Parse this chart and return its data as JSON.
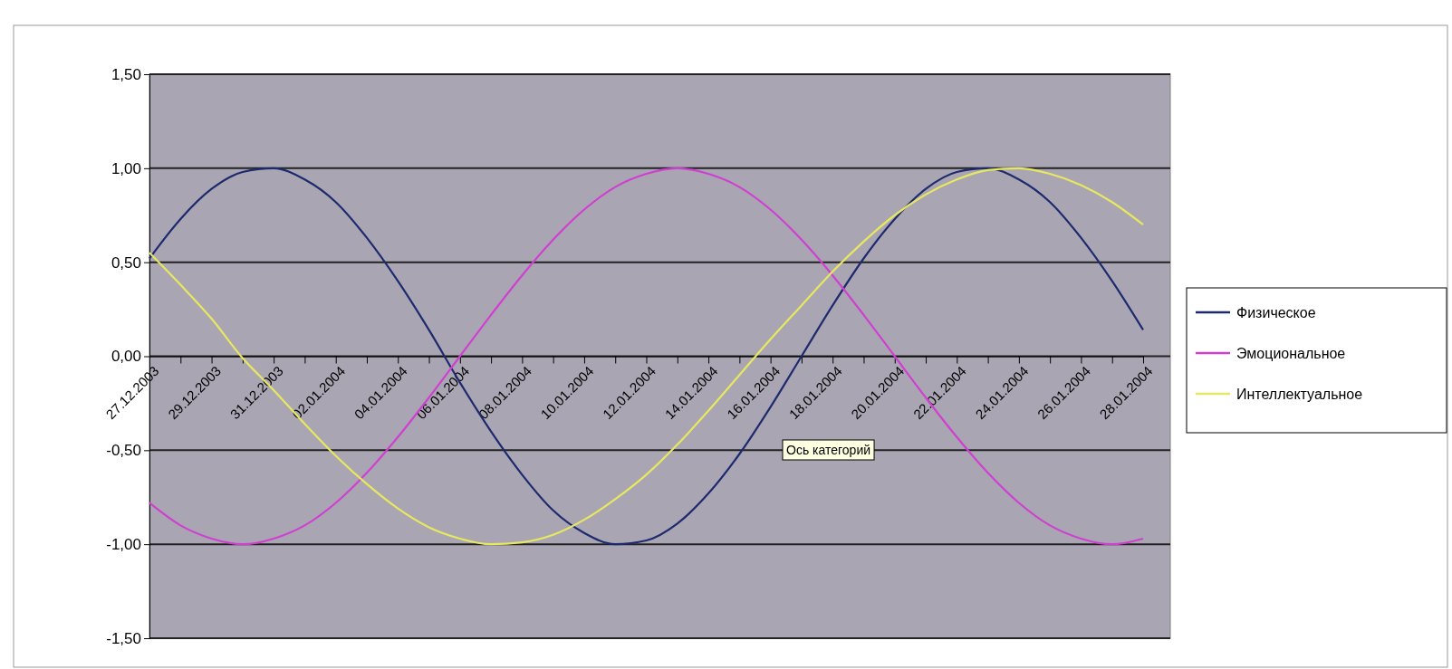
{
  "chart_data": {
    "type": "line",
    "categories": [
      "27.12.2003",
      null,
      "29.12.2003",
      null,
      "31.12.2003",
      null,
      "02.01.2004",
      null,
      "04.01.2004",
      null,
      "06.01.2004",
      null,
      "08.01.2004",
      null,
      "10.01.2004",
      null,
      "12.01.2004",
      null,
      "14.01.2004",
      null,
      "16.01.2004",
      null,
      "18.01.2004",
      null,
      "20.01.2004",
      null,
      "22.01.2004",
      null,
      "24.01.2004",
      null,
      "26.01.2004",
      null,
      "28.01.2004"
    ],
    "series": [
      {
        "name": "Физическое",
        "color": "#1e2a6e",
        "values": [
          0.52,
          0.73,
          0.89,
          0.98,
          1.0,
          0.94,
          0.82,
          0.63,
          0.4,
          0.14,
          -0.14,
          -0.4,
          -0.63,
          -0.82,
          -0.94,
          -1.0,
          -0.98,
          -0.89,
          -0.73,
          -0.52,
          -0.27,
          0.0,
          0.27,
          0.52,
          0.73,
          0.89,
          0.98,
          1.0,
          0.94,
          0.82,
          0.63,
          0.4,
          0.14
        ]
      },
      {
        "name": "Эмоциональное",
        "color": "#d040d0",
        "values": [
          -0.78,
          -0.9,
          -0.97,
          -1.0,
          -0.97,
          -0.9,
          -0.78,
          -0.62,
          -0.43,
          -0.22,
          0.0,
          0.22,
          0.43,
          0.62,
          0.78,
          0.9,
          0.97,
          1.0,
          0.97,
          0.9,
          0.78,
          0.62,
          0.43,
          0.22,
          0.0,
          -0.22,
          -0.43,
          -0.62,
          -0.78,
          -0.9,
          -0.97,
          -1.0,
          -0.97
        ]
      },
      {
        "name": "Интеллектуальное",
        "color": "#e8e860",
        "values": [
          0.55,
          0.38,
          0.2,
          -0.01,
          -0.18,
          -0.36,
          -0.53,
          -0.68,
          -0.81,
          -0.91,
          -0.97,
          -1.0,
          -0.99,
          -0.95,
          -0.87,
          -0.76,
          -0.63,
          -0.47,
          -0.29,
          -0.1,
          0.09,
          0.27,
          0.45,
          0.61,
          0.75,
          0.86,
          0.94,
          0.99,
          1.0,
          0.97,
          0.91,
          0.82,
          0.7
        ]
      }
    ],
    "ylim": [
      -1.5,
      1.5
    ],
    "yticks": [
      {
        "value": -1.5,
        "label": "-1,50"
      },
      {
        "value": -1,
        "label": "-1,00"
      },
      {
        "value": -0.5,
        "label": "-0,50"
      },
      {
        "value": 0,
        "label": "0,00"
      },
      {
        "value": 0.5,
        "label": "0,50"
      },
      {
        "value": 1,
        "label": "1,00"
      },
      {
        "value": 1.5,
        "label": "1,50"
      }
    ],
    "grid": "y",
    "legend": "right",
    "marker": "none",
    "line_style": "solid",
    "annotations": [
      "Ось категорий"
    ]
  }
}
